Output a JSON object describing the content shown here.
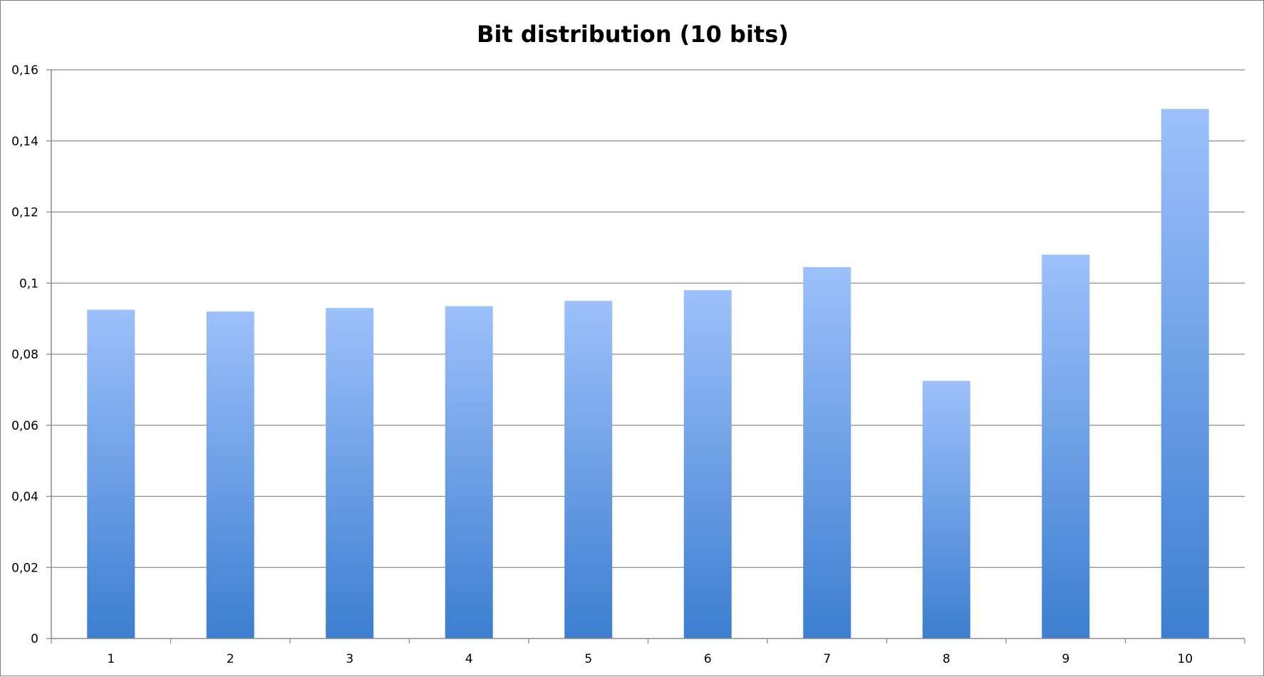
{
  "chart_data": {
    "type": "bar",
    "title": "Bit distribution (10 bits)",
    "xlabel": "",
    "ylabel": "",
    "categories": [
      "1",
      "2",
      "3",
      "4",
      "5",
      "6",
      "7",
      "8",
      "9",
      "10"
    ],
    "values": [
      0.0925,
      0.092,
      0.093,
      0.0935,
      0.095,
      0.098,
      0.1045,
      0.0725,
      0.108,
      0.149
    ],
    "ylim": [
      0,
      0.16
    ],
    "y_ticks": [
      "0",
      "0,02",
      "0,04",
      "0,06",
      "0,08",
      "0,1",
      "0,12",
      "0,14",
      "0,16"
    ],
    "y_tick_values": [
      0,
      0.02,
      0.04,
      0.06,
      0.08,
      0.1,
      0.12,
      0.14,
      0.16
    ],
    "grid": true,
    "legend": "none",
    "colors": {
      "bar_top": "#9dc0fb",
      "bar_bottom": "#3c7ed0",
      "grid": "#8c8c8c"
    }
  }
}
